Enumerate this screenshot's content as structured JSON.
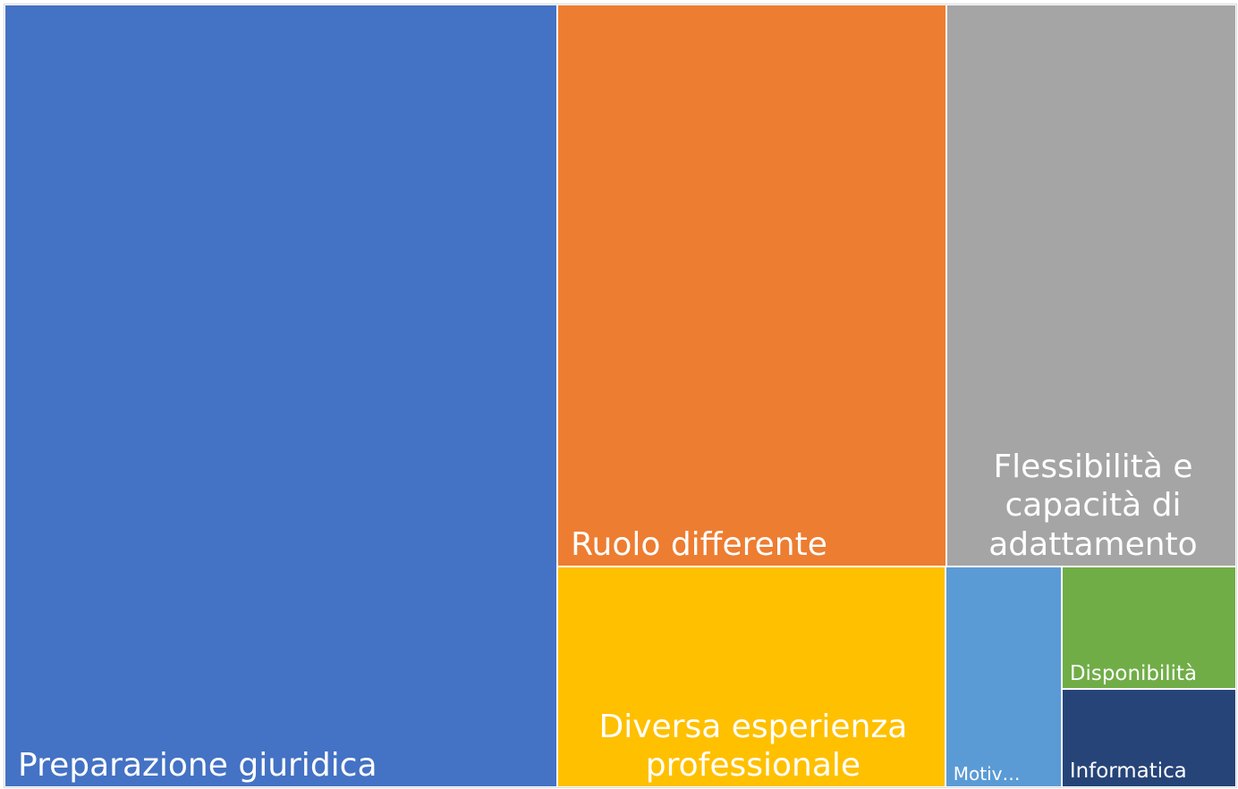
{
  "chart_data": {
    "type": "treemap",
    "categories": [
      "Preparazione giuridica",
      "Ruolo differente",
      "Flessibilità e capacità di adattamento",
      "Diversa esperienza professionale",
      "Motiv…",
      "Disponibilità",
      "Informatica"
    ],
    "values": [
      101,
      51,
      38,
      20,
      6,
      5,
      4
    ],
    "colors": [
      "#4472c4",
      "#ed7d31",
      "#a5a5a5",
      "#ffc000",
      "#5b9bd5",
      "#70ad47",
      "#264478"
    ]
  }
}
